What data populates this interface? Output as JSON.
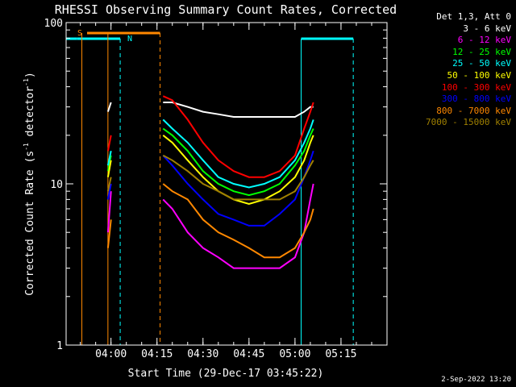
{
  "chart_data": {
    "type": "line",
    "title": "RHESSI Observing Summary Count Rates, Corrected",
    "xlabel": "Start Time (29-Dec-17 03:45:22)",
    "ylabel_main": "Corrected Count Rate (s",
    "ylabel_sup1": "-1",
    "ylabel_mid": " detector",
    "ylabel_sup2": "-1",
    "ylabel_end": ")",
    "y_scale": "log",
    "ylim": [
      1,
      100
    ],
    "xlim": [
      "03:45:22",
      "05:30"
    ],
    "y_ticks": [
      "1",
      "10",
      "100"
    ],
    "x_ticks": [
      "04:00",
      "04:15",
      "04:30",
      "04:45",
      "05:00",
      "05:15"
    ],
    "legend_title": "Det 1,3, Att 0",
    "series": [
      {
        "name": "3 - 6 keV",
        "color": "#ffffff",
        "x": [
          "03:59",
          "04:00",
          "04:17",
          "04:20",
          "04:25",
          "04:30",
          "04:35",
          "04:40",
          "04:45",
          "04:50",
          "04:55",
          "05:00",
          "05:03",
          "05:05",
          "05:06"
        ],
        "values": [
          28,
          32,
          32,
          32,
          30,
          28,
          27,
          26,
          26,
          26,
          26,
          26,
          28,
          30,
          30
        ]
      },
      {
        "name": "6 - 12 keV",
        "color": "#ff00ff",
        "x": [
          "03:59",
          "04:00",
          "04:17",
          "04:20",
          "04:25",
          "04:30",
          "04:35",
          "04:40",
          "04:45",
          "04:50",
          "04:55",
          "05:00",
          "05:03",
          "05:05",
          "05:06"
        ],
        "values": [
          5,
          9,
          8,
          7,
          5,
          4,
          3.5,
          3,
          3,
          3,
          3,
          3.5,
          5,
          8,
          10
        ]
      },
      {
        "name": "12 - 25 keV",
        "color": "#00ff00",
        "x": [
          "03:59",
          "04:00",
          "04:17",
          "04:20",
          "04:25",
          "04:30",
          "04:35",
          "04:40",
          "04:45",
          "04:50",
          "04:55",
          "05:00",
          "05:03",
          "05:05",
          "05:06"
        ],
        "values": [
          12,
          15,
          22,
          20,
          16,
          12,
          10,
          9,
          8.5,
          9,
          10,
          13,
          16,
          20,
          22
        ]
      },
      {
        "name": "25 - 50 keV",
        "color": "#00ffff",
        "x": [
          "03:59",
          "04:00",
          "04:17",
          "04:20",
          "04:25",
          "04:30",
          "04:35",
          "04:40",
          "04:45",
          "04:50",
          "04:55",
          "05:00",
          "05:03",
          "05:05",
          "05:06"
        ],
        "values": [
          13,
          16,
          25,
          22,
          18,
          14,
          11,
          10,
          9.5,
          10,
          11,
          14,
          18,
          22,
          25
        ]
      },
      {
        "name": "50 - 100 keV",
        "color": "#ffff00",
        "x": [
          "03:59",
          "04:00",
          "04:17",
          "04:20",
          "04:25",
          "04:30",
          "04:35",
          "04:40",
          "04:45",
          "04:50",
          "04:55",
          "05:00",
          "05:03",
          "05:05",
          "05:06"
        ],
        "values": [
          11,
          14,
          20,
          18,
          14,
          11,
          9,
          8,
          7.5,
          8,
          9,
          11,
          14,
          18,
          20
        ]
      },
      {
        "name": "100 - 300 keV",
        "color": "#ff0000",
        "x": [
          "03:59",
          "04:00",
          "04:17",
          "04:20",
          "04:25",
          "04:30",
          "04:35",
          "04:40",
          "04:45",
          "04:50",
          "04:55",
          "05:00",
          "05:03",
          "05:05",
          "05:06"
        ],
        "values": [
          16,
          20,
          35,
          33,
          25,
          18,
          14,
          12,
          11,
          11,
          12,
          15,
          22,
          28,
          32
        ]
      },
      {
        "name": "300 - 800 keV",
        "color": "#0000ff",
        "x": [
          "03:59",
          "04:00",
          "04:17",
          "04:20",
          "04:25",
          "04:30",
          "04:35",
          "04:40",
          "04:45",
          "04:50",
          "04:55",
          "05:00",
          "05:03",
          "05:05",
          "05:06"
        ],
        "values": [
          8,
          10,
          15,
          13,
          10,
          8,
          6.5,
          6,
          5.5,
          5.5,
          6.5,
          8,
          11,
          14,
          16
        ]
      },
      {
        "name": "800 - 7000 keV",
        "color": "#ff8800",
        "x": [
          "03:59",
          "04:00",
          "04:17",
          "04:20",
          "04:25",
          "04:30",
          "04:35",
          "04:40",
          "04:45",
          "04:50",
          "04:55",
          "05:00",
          "05:03",
          "05:05",
          "05:06"
        ],
        "values": [
          4,
          6,
          10,
          9,
          8,
          6,
          5,
          4.5,
          4,
          3.5,
          3.5,
          4,
          5,
          6,
          7
        ]
      },
      {
        "name": "7000 - 15000 keV",
        "color": "#a08000",
        "x": [
          "03:59",
          "04:00",
          "04:17",
          "04:20",
          "04:25",
          "04:30",
          "04:35",
          "04:40",
          "04:45",
          "04:50",
          "04:55",
          "05:00",
          "05:03",
          "05:05",
          "05:06"
        ],
        "values": [
          9,
          11,
          15,
          14,
          12,
          10,
          9,
          8,
          8,
          8,
          8,
          9,
          11,
          13,
          14
        ]
      }
    ],
    "flags": {
      "saa_label": "S",
      "night_label": "N",
      "saa_color": "#ff8800",
      "night_color": "#00ffff",
      "saa_intervals": [
        [
          "03:45:22",
          "04:16:00"
        ]
      ],
      "night_intervals": [
        [
          "03:45:22",
          "03:49:00"
        ],
        [
          "03:49:00",
          "04:03:00"
        ],
        [
          "05:02:00",
          "05:19:00"
        ]
      ],
      "saa_marks": [
        "03:50:30",
        "03:59:00",
        "04:16:00"
      ],
      "night_marks": [
        "04:03:00",
        "05:02:00",
        "05:19:00"
      ]
    }
  },
  "footer": "2-Sep-2022 13:20"
}
